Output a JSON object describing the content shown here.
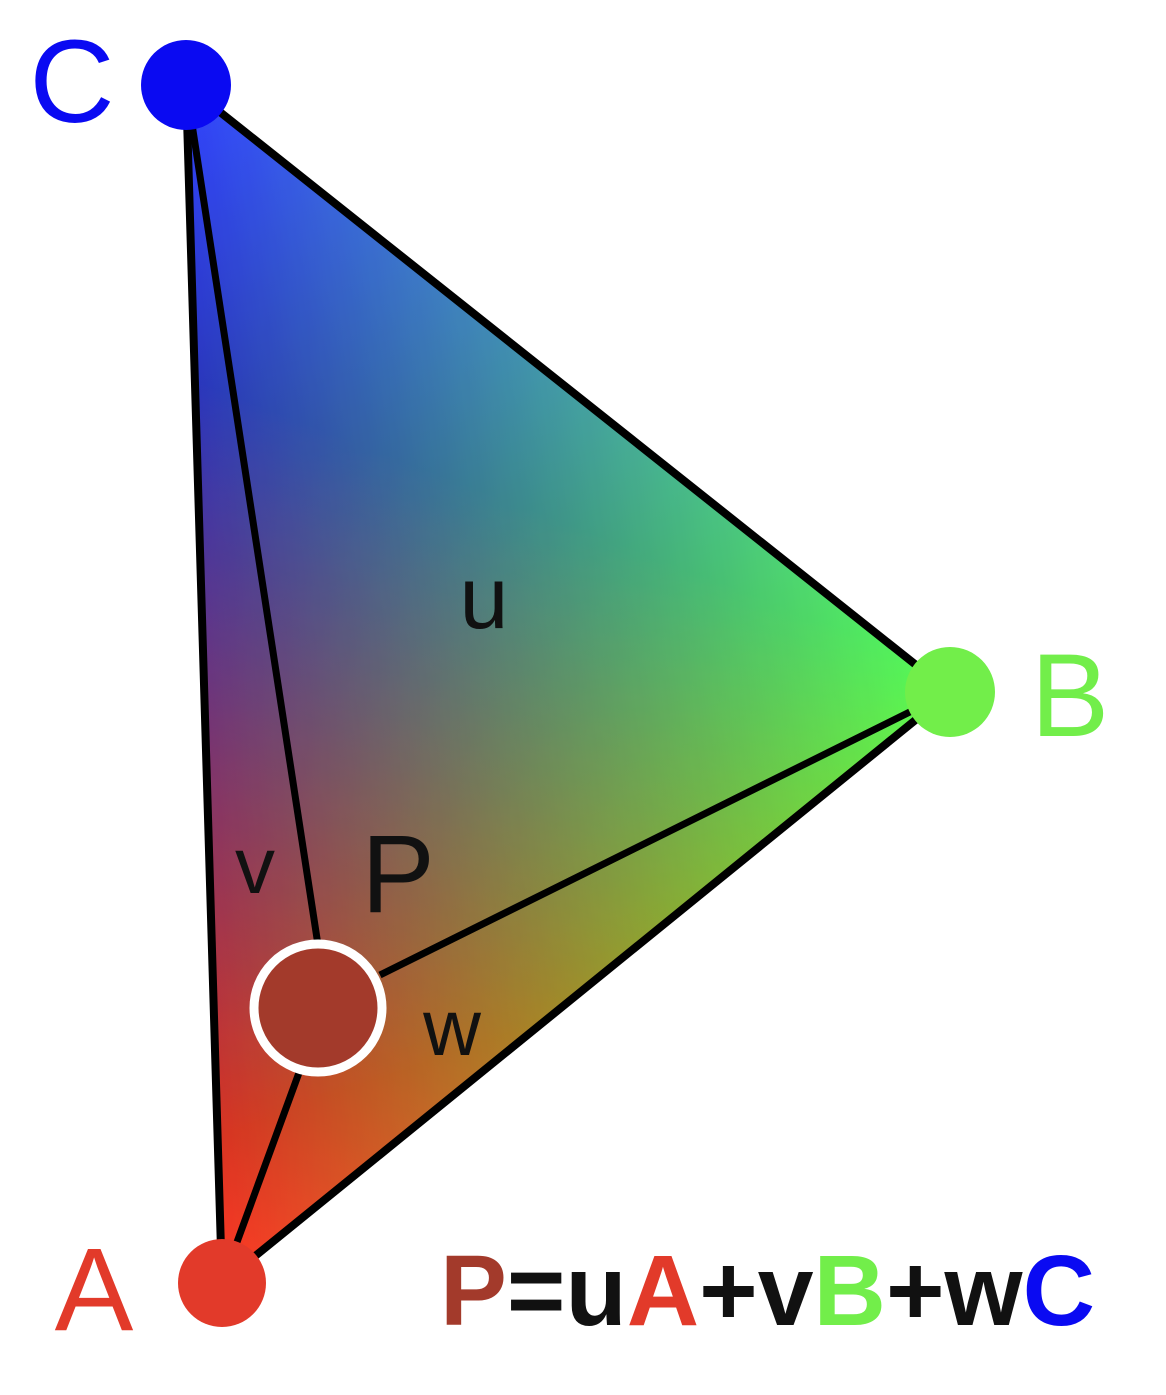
{
  "vertices": {
    "A": {
      "label": "A",
      "color": "#e23a2a"
    },
    "B": {
      "label": "B",
      "color": "#72ee4a"
    },
    "C": {
      "label": "C",
      "color": "#0a0af2"
    }
  },
  "point": {
    "label": "P",
    "fill": "#a33a2b",
    "ring": "#ffffff"
  },
  "weights": {
    "u": "u",
    "v": "v",
    "w": "w"
  },
  "formula": [
    {
      "text": "P",
      "color": "#a33a2b"
    },
    {
      "text": "=u",
      "color": "#111111"
    },
    {
      "text": "A",
      "color": "#e23a2a"
    },
    {
      "text": "+v",
      "color": "#111111"
    },
    {
      "text": "B",
      "color": "#72ee4a"
    },
    {
      "text": "+w",
      "color": "#111111"
    },
    {
      "text": "C",
      "color": "#0a0af2"
    }
  ]
}
